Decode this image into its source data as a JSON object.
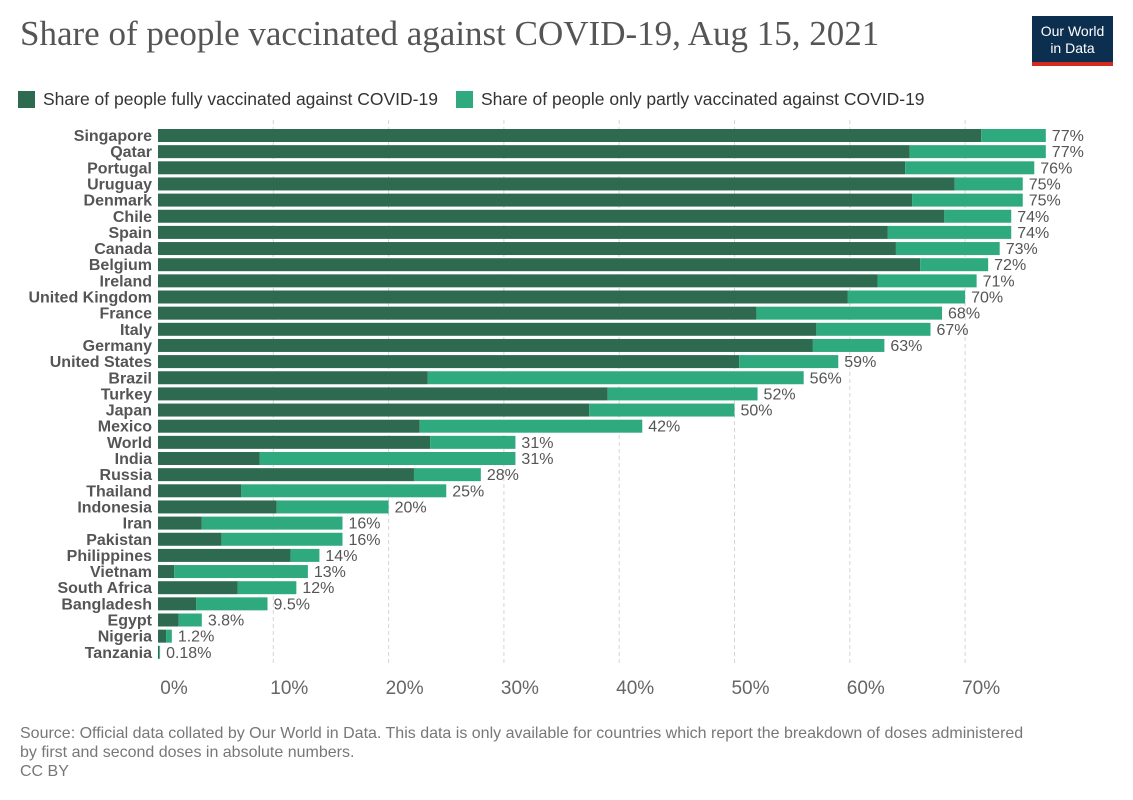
{
  "title": "Share of people vaccinated against COVID-19, Aug 15, 2021",
  "logo": {
    "line1": "Our World",
    "line2": "in Data",
    "background": "#0d2f4f",
    "accent": "#d42b21"
  },
  "footer": {
    "source_line1": "Source: Official data collated by Our World in Data. This data is only available for countries which report the breakdown of doses administered",
    "source_line2": "by first and second doses in absolute numbers.",
    "license": "CC BY"
  },
  "chart_data": {
    "type": "bar",
    "orientation": "horizontal",
    "stacked": true,
    "title": "Share of people vaccinated against COVID-19, Aug 15, 2021",
    "xlim": [
      0,
      77
    ],
    "x_ticks": [
      0,
      10,
      20,
      30,
      40,
      50,
      60,
      70
    ],
    "x_tick_labels": [
      "0%",
      "10%",
      "20%",
      "30%",
      "40%",
      "50%",
      "60%",
      "70%"
    ],
    "grid": "vertical dashed",
    "legend_position": "top-left",
    "categories": [
      "Singapore",
      "Qatar",
      "Portugal",
      "Uruguay",
      "Denmark",
      "Chile",
      "Spain",
      "Canada",
      "Belgium",
      "Ireland",
      "United Kingdom",
      "France",
      "Italy",
      "Germany",
      "United States",
      "Brazil",
      "Turkey",
      "Japan",
      "Mexico",
      "World",
      "India",
      "Russia",
      "Thailand",
      "Indonesia",
      "Iran",
      "Pakistan",
      "Philippines",
      "Vietnam",
      "South Africa",
      "Bangladesh",
      "Egypt",
      "Nigeria",
      "Tanzania"
    ],
    "series": [
      {
        "name": "Share of people fully vaccinated against COVID-19",
        "color": "#2d6a4f",
        "values": [
          71.4,
          65.2,
          64.8,
          69.1,
          65.4,
          68.2,
          63.3,
          64.0,
          66.1,
          62.4,
          59.8,
          51.9,
          57.1,
          56.8,
          50.4,
          23.4,
          39.0,
          37.4,
          22.7,
          23.6,
          8.8,
          22.2,
          7.2,
          10.3,
          3.8,
          5.5,
          11.5,
          1.4,
          6.9,
          3.3,
          1.8,
          0.7,
          0.1
        ]
      },
      {
        "name": "Share of people only partly vaccinated against COVID-19",
        "color": "#2faa7f",
        "values": [
          5.6,
          11.8,
          11.2,
          5.9,
          9.6,
          5.8,
          10.7,
          9.0,
          5.9,
          8.6,
          10.2,
          16.1,
          9.9,
          6.2,
          8.6,
          32.6,
          13.0,
          12.6,
          19.3,
          7.4,
          22.2,
          5.8,
          17.8,
          9.7,
          12.2,
          10.5,
          2.5,
          11.6,
          5.1,
          6.2,
          2.0,
          0.5,
          0.08
        ]
      }
    ],
    "total_labels": [
      "77%",
      "77%",
      "76%",
      "75%",
      "75%",
      "74%",
      "74%",
      "73%",
      "72%",
      "71%",
      "70%",
      "68%",
      "67%",
      "63%",
      "59%",
      "56%",
      "52%",
      "50%",
      "42%",
      "31%",
      "31%",
      "28%",
      "25%",
      "20%",
      "16%",
      "16%",
      "14%",
      "13%",
      "12%",
      "9.5%",
      "3.8%",
      "1.2%",
      "0.18%"
    ]
  }
}
